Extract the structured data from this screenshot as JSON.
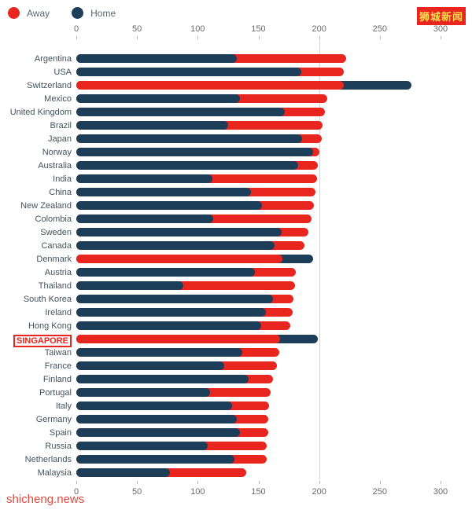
{
  "page": {
    "watermark": "狮城新闻",
    "footer": "shicheng.news"
  },
  "chart_data": {
    "type": "bar",
    "orientation": "horizontal",
    "title": "",
    "xlabel": "",
    "ylabel": "",
    "xlim": [
      0,
      300
    ],
    "ticks": [
      0,
      50,
      100,
      150,
      200,
      250,
      300
    ],
    "gridline_x": 200,
    "legend_position": "top-left",
    "overlap_style": "both bars start at zero; the shorter bar is drawn in front of the longer one",
    "highlighted_category": "SINGAPORE",
    "categories": [
      "Argentina",
      "USA",
      "Switzerland",
      "Mexico",
      "United Kingdom",
      "Brazil",
      "Japan",
      "Norway",
      "Australia",
      "India",
      "China",
      "New Zealand",
      "Colombia",
      "Sweden",
      "Canada",
      "Denmark",
      "Austria",
      "Thailand",
      "South Korea",
      "Ireland",
      "Hong Kong",
      "SINGAPORE",
      "Taiwan",
      "France",
      "Finland",
      "Portugal",
      "Italy",
      "Germany",
      "Spain",
      "Russia",
      "Netherlands",
      "Malaysia"
    ],
    "series": [
      {
        "name": "Away",
        "color": "#e8251f",
        "values": [
          222,
          220,
          220,
          207,
          205,
          203,
          202,
          200,
          199,
          198,
          197,
          196,
          194,
          191,
          188,
          170,
          181,
          180,
          179,
          178,
          176,
          168,
          167,
          165,
          162,
          160,
          159,
          158,
          158,
          157,
          157,
          140
        ]
      },
      {
        "name": "Home",
        "color": "#1d3e59",
        "values": [
          132,
          185,
          276,
          135,
          172,
          125,
          186,
          195,
          183,
          112,
          144,
          153,
          113,
          169,
          163,
          195,
          147,
          88,
          162,
          156,
          152,
          199,
          137,
          122,
          142,
          110,
          128,
          132,
          135,
          108,
          130,
          77
        ]
      }
    ]
  }
}
